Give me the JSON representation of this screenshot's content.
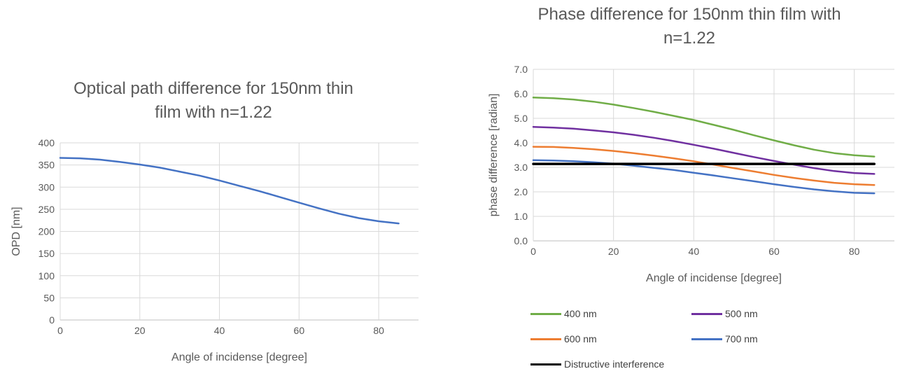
{
  "chart_data": [
    {
      "type": "line",
      "title": "Optical path difference  for 150nm thin film with n=1.22",
      "title_lines": [
        "Optical path difference  for 150nm thin",
        "film with n=1.22"
      ],
      "xlabel": "Angle of incidense [degree]",
      "ylabel": "OPD [nm]",
      "xlim": [
        0,
        90
      ],
      "ylim": [
        0,
        400
      ],
      "xticks": [
        0,
        20,
        40,
        60,
        80
      ],
      "yticks": [
        0,
        50,
        100,
        150,
        200,
        250,
        300,
        350,
        400
      ],
      "grid": "horizontal and vertical major gridlines",
      "series": [
        {
          "color": "#4472C4",
          "x": [
            0,
            5,
            10,
            15,
            20,
            25,
            30,
            35,
            40,
            45,
            50,
            55,
            60,
            65,
            70,
            75,
            80,
            85
          ],
          "y": [
            366,
            365,
            362,
            357,
            351,
            344,
            335,
            326,
            315,
            303,
            291,
            278,
            265,
            252,
            240,
            230,
            223,
            218
          ]
        }
      ]
    },
    {
      "type": "line",
      "title": "Phase difference for 150nm thin film with n=1.22",
      "title_lines": [
        "Phase difference for 150nm thin film with",
        "n=1.22"
      ],
      "xlabel": "Angle of incidense [degree]",
      "ylabel": "phase difference [radian]",
      "xlim": [
        0,
        90
      ],
      "ylim": [
        0,
        7
      ],
      "xticks": [
        0,
        20,
        40,
        60,
        80
      ],
      "yticks": [
        "0.0",
        "1.0",
        "2.0",
        "3.0",
        "4.0",
        "5.0",
        "6.0",
        "7.0"
      ],
      "grid": "horizontal and vertical major gridlines",
      "legend_position": "bottom",
      "x": [
        0,
        5,
        10,
        15,
        20,
        25,
        30,
        35,
        40,
        45,
        50,
        55,
        60,
        65,
        70,
        75,
        80,
        85
      ],
      "series": [
        {
          "name": "400 nm",
          "color": "#70AD47",
          "y": [
            5.85,
            5.82,
            5.77,
            5.68,
            5.56,
            5.42,
            5.27,
            5.1,
            4.93,
            4.73,
            4.53,
            4.31,
            4.1,
            3.9,
            3.72,
            3.58,
            3.49,
            3.44
          ]
        },
        {
          "name": "500 nm",
          "color": "#7030A0",
          "y": [
            4.65,
            4.62,
            4.58,
            4.51,
            4.43,
            4.33,
            4.21,
            4.07,
            3.92,
            3.76,
            3.59,
            3.42,
            3.26,
            3.11,
            2.97,
            2.85,
            2.77,
            2.73
          ]
        },
        {
          "name": "600 nm",
          "color": "#ED7D31",
          "y": [
            3.84,
            3.83,
            3.79,
            3.74,
            3.67,
            3.58,
            3.48,
            3.37,
            3.25,
            3.11,
            2.97,
            2.83,
            2.69,
            2.57,
            2.46,
            2.37,
            2.31,
            2.28
          ]
        },
        {
          "name": "700 nm",
          "color": "#4472C4",
          "y": [
            3.29,
            3.28,
            3.25,
            3.21,
            3.15,
            3.07,
            2.98,
            2.89,
            2.78,
            2.67,
            2.55,
            2.43,
            2.31,
            2.2,
            2.1,
            2.02,
            1.96,
            1.94
          ]
        },
        {
          "name": "Distructive interference",
          "color": "#000000",
          "y": [
            3.14,
            3.14,
            3.14,
            3.14,
            3.14,
            3.14,
            3.14,
            3.14,
            3.14,
            3.14,
            3.14,
            3.14,
            3.14,
            3.14,
            3.14,
            3.14,
            3.14,
            3.14
          ]
        }
      ]
    }
  ]
}
